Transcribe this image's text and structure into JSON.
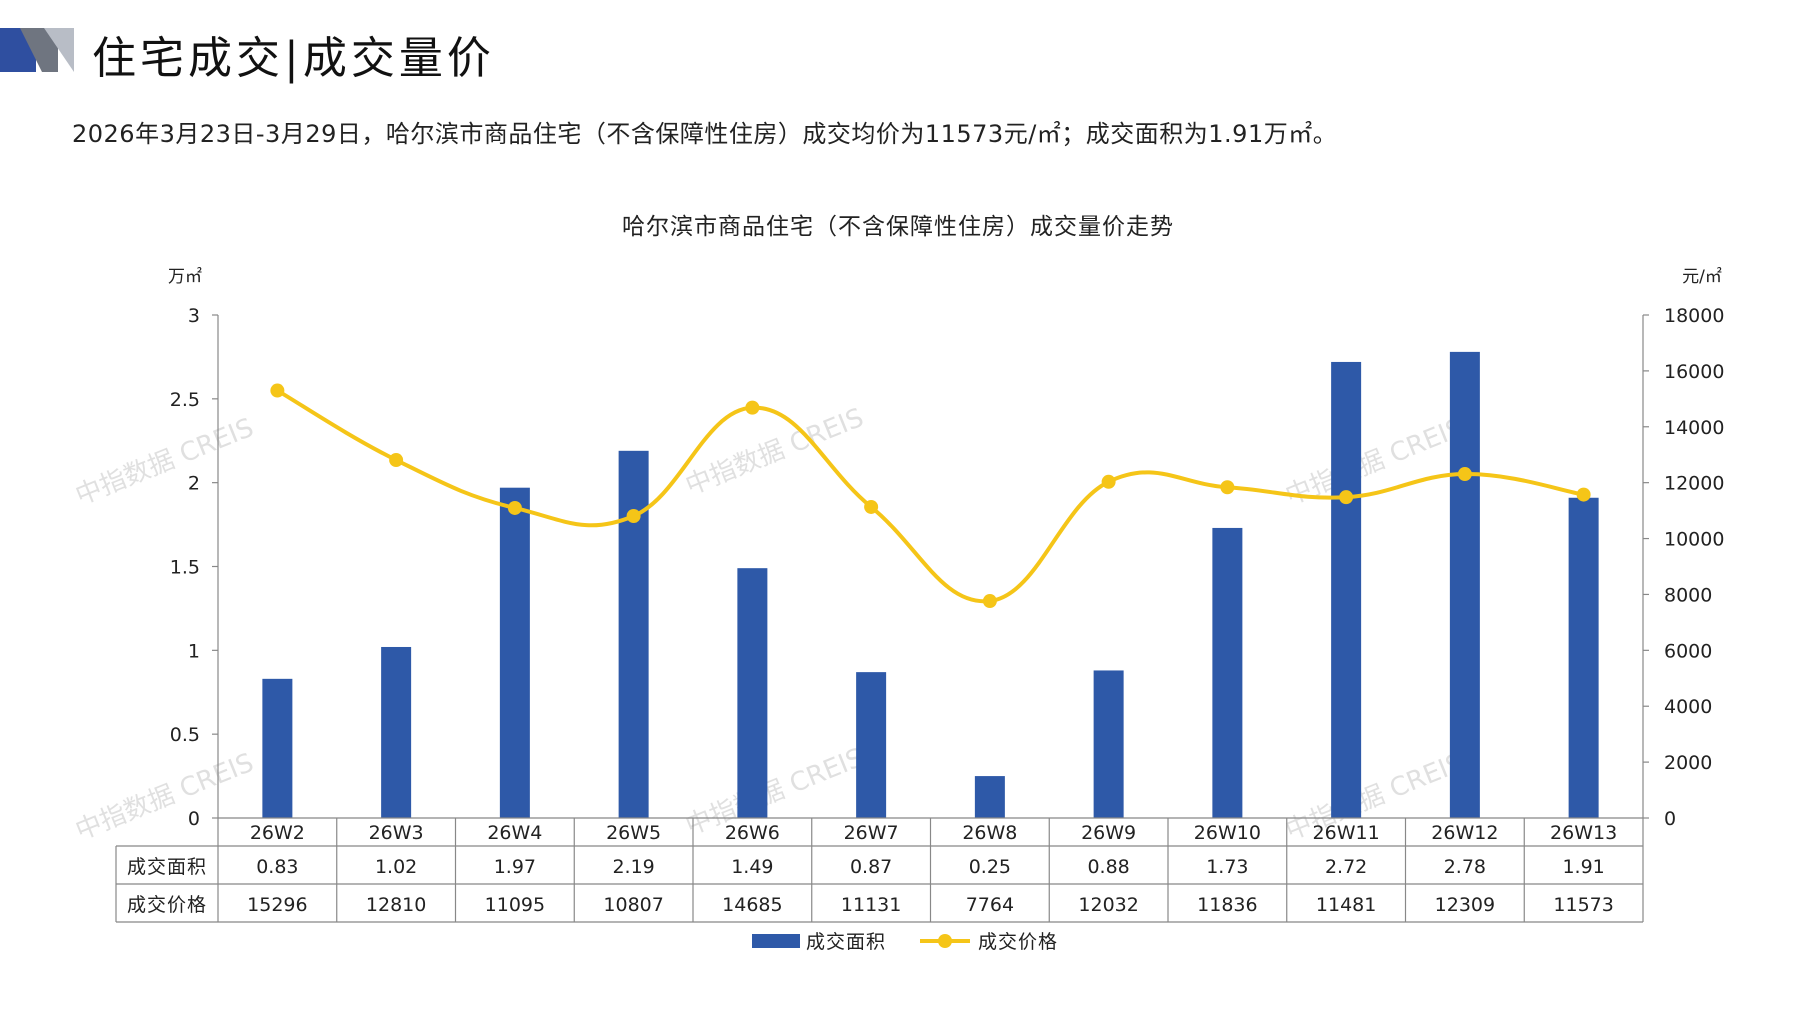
{
  "header": {
    "title": "住宅成交|成交量价",
    "summary": "2026年3月23日-3月29日，哈尔滨市商品住宅（不含保障性住房）成交均价为11573元/㎡；成交面积为1.91万㎡。"
  },
  "watermark": "中指数据 CREIS",
  "colors": {
    "bar": "#2E59A8",
    "line": "#F5C518",
    "accent": "#2F4FA0"
  },
  "chart_data": {
    "type": "bar+line",
    "title": "哈尔滨市商品住宅（不含保障性住房）成交量价走势",
    "categories": [
      "26W2",
      "26W3",
      "26W4",
      "26W5",
      "26W6",
      "26W7",
      "26W8",
      "26W9",
      "26W10",
      "26W11",
      "26W12",
      "26W13"
    ],
    "series": [
      {
        "name": "成交面积",
        "type": "bar",
        "axis": "left",
        "values": [
          0.83,
          1.02,
          1.97,
          2.19,
          1.49,
          0.87,
          0.25,
          0.88,
          1.73,
          2.72,
          2.78,
          1.91
        ]
      },
      {
        "name": "成交价格",
        "type": "line",
        "axis": "right",
        "values": [
          15296,
          12810,
          11095,
          10807,
          14685,
          11131,
          7764,
          12032,
          11836,
          11481,
          12309,
          11573
        ]
      }
    ],
    "y_left": {
      "label": "万㎡",
      "ylim": [
        0,
        3
      ],
      "ticks": [
        "0",
        "0.5",
        "1",
        "1.5",
        "2",
        "2.5",
        "3"
      ]
    },
    "y_right": {
      "label": "元/㎡",
      "ylim": [
        0,
        18000
      ],
      "ticks": [
        "0",
        "2000",
        "4000",
        "6000",
        "8000",
        "10000",
        "12000",
        "14000",
        "16000",
        "18000"
      ]
    },
    "table_labels": [
      "成交面积",
      "成交价格"
    ],
    "table_rows": [
      [
        "0.83",
        "1.02",
        "1.97",
        "2.19",
        "1.49",
        "0.87",
        "0.25",
        "0.88",
        "1.73",
        "2.72",
        "2.78",
        "1.91"
      ],
      [
        "15296",
        "12810",
        "11095",
        "10807",
        "14685",
        "11131",
        "7764",
        "12032",
        "11836",
        "11481",
        "12309",
        "11573"
      ]
    ],
    "legend": [
      "成交面积",
      "成交价格"
    ],
    "legend_position": "bottom",
    "grid": false
  }
}
